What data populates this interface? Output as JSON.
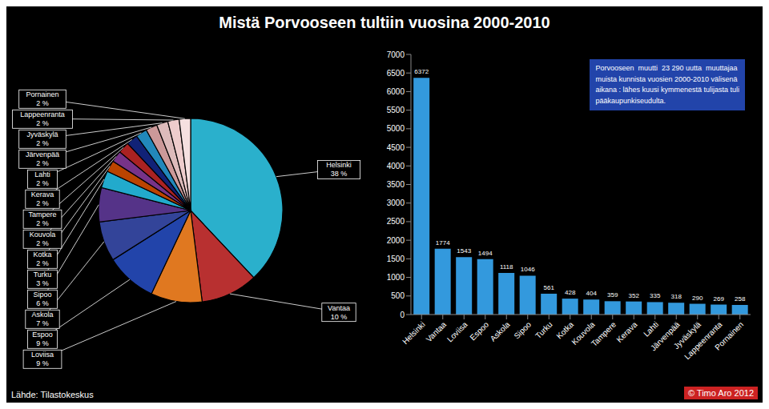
{
  "chart_data": [
    {
      "type": "pie",
      "title": "Mistä Porvooseen tultiin vuosina 2000-2010",
      "categories": [
        "Helsinki",
        "Vantaa",
        "Loviisa",
        "Espoo",
        "Askola",
        "Sipoo",
        "Turku",
        "Kotka",
        "Kouvola",
        "Tampere",
        "Kerava",
        "Lahti",
        "Järvenpää",
        "Jyväskylä",
        "Lappeenranta",
        "Pornainen"
      ],
      "values": [
        38,
        10,
        9,
        9,
        7,
        6,
        3,
        2,
        2,
        2,
        2,
        2,
        2,
        2,
        2,
        2
      ],
      "value_labels": [
        "38 %",
        "10 %",
        "9 %",
        "9 %",
        "7 %",
        "6 %",
        "3 %",
        "2 %",
        "2 %",
        "2 %",
        "2 %",
        "2 %",
        "2 %",
        "2 %",
        "2 %",
        "2 %"
      ],
      "colors": [
        "#2ab0cc",
        "#b83030",
        "#e07820",
        "#2244aa",
        "#334499",
        "#553388",
        "#22aacc",
        "#bb4400",
        "#773388",
        "#aa2222",
        "#112277",
        "#2288bb",
        "#cc9999",
        "#ddbbbb",
        "#eecccc",
        "#f5e0e0"
      ],
      "data_labels": true,
      "annotations": [
        {
          "text": "Lähde: Tilastokeskus"
        },
        {
          "text": "© Timo Aro 2012",
          "color": "#cc2222"
        }
      ]
    },
    {
      "type": "bar",
      "categories": [
        "Helsinki",
        "Vantaa",
        "Loviisa",
        "Espoo",
        "Askola",
        "Sipoo",
        "Turku",
        "Kotka",
        "Kouvola",
        "Tampere",
        "Kerava",
        "Lahti",
        "Järvenpää",
        "Jyväskylä",
        "Lappeenranta",
        "Pornainen"
      ],
      "values": [
        6372,
        1774,
        1543,
        1494,
        1118,
        1046,
        561,
        428,
        404,
        359,
        352,
        335,
        318,
        290,
        269,
        258
      ],
      "color": "#3399dd",
      "ylim": [
        0,
        7000
      ],
      "yticks": [
        0,
        500,
        1000,
        1500,
        2000,
        2500,
        3000,
        3500,
        4000,
        4500,
        5000,
        5500,
        6000,
        6500,
        7000
      ],
      "data_labels": true,
      "annotations": [
        {
          "text": "Porvooseen  muutti  23 290 uutta  muuttajaa\nmuista kunnista vuosien 2000-2010 välisenä\naikana : lähes kuusi kymmenestä tulijasta tuli\npääkaupunkiseudulta.",
          "color": "#2244aa"
        }
      ]
    }
  ]
}
